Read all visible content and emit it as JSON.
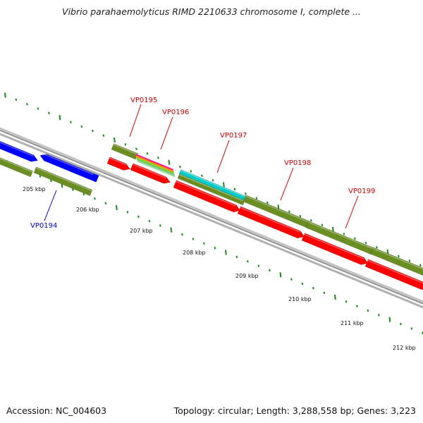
{
  "header": {
    "title": "Vibrio parahaemolyticus RIMD 2210633 chromosome I, complete ..."
  },
  "footer": {
    "accession": "Accession: NC_004603",
    "summary": "Topology: circular; Length: 3,288,558 bp; Genes: 3,223"
  },
  "map": {
    "scale_labels": [
      "205 kbp",
      "206 kbp",
      "207 kbp",
      "208 kbp",
      "209 kbp",
      "210 kbp",
      "211 kbp",
      "212 kbp"
    ],
    "gene_labels": [
      {
        "name": "VP0194",
        "color": "#0000cc"
      },
      {
        "name": "VP0195",
        "color": "#cc0000"
      },
      {
        "name": "VP0196",
        "color": "#cc0000"
      },
      {
        "name": "VP0197",
        "color": "#cc0000"
      },
      {
        "name": "VP0198",
        "color": "#cc0000"
      },
      {
        "name": "VP0199",
        "color": "#cc0000"
      }
    ],
    "colors": {
      "backbone": "#999999",
      "cds_red": "#ff0000",
      "cds_blue": "#0000ff",
      "gene_green": "#6b8e23",
      "trna_cyan": "#00cccc",
      "tick_green": "#1a8a1a"
    }
  }
}
